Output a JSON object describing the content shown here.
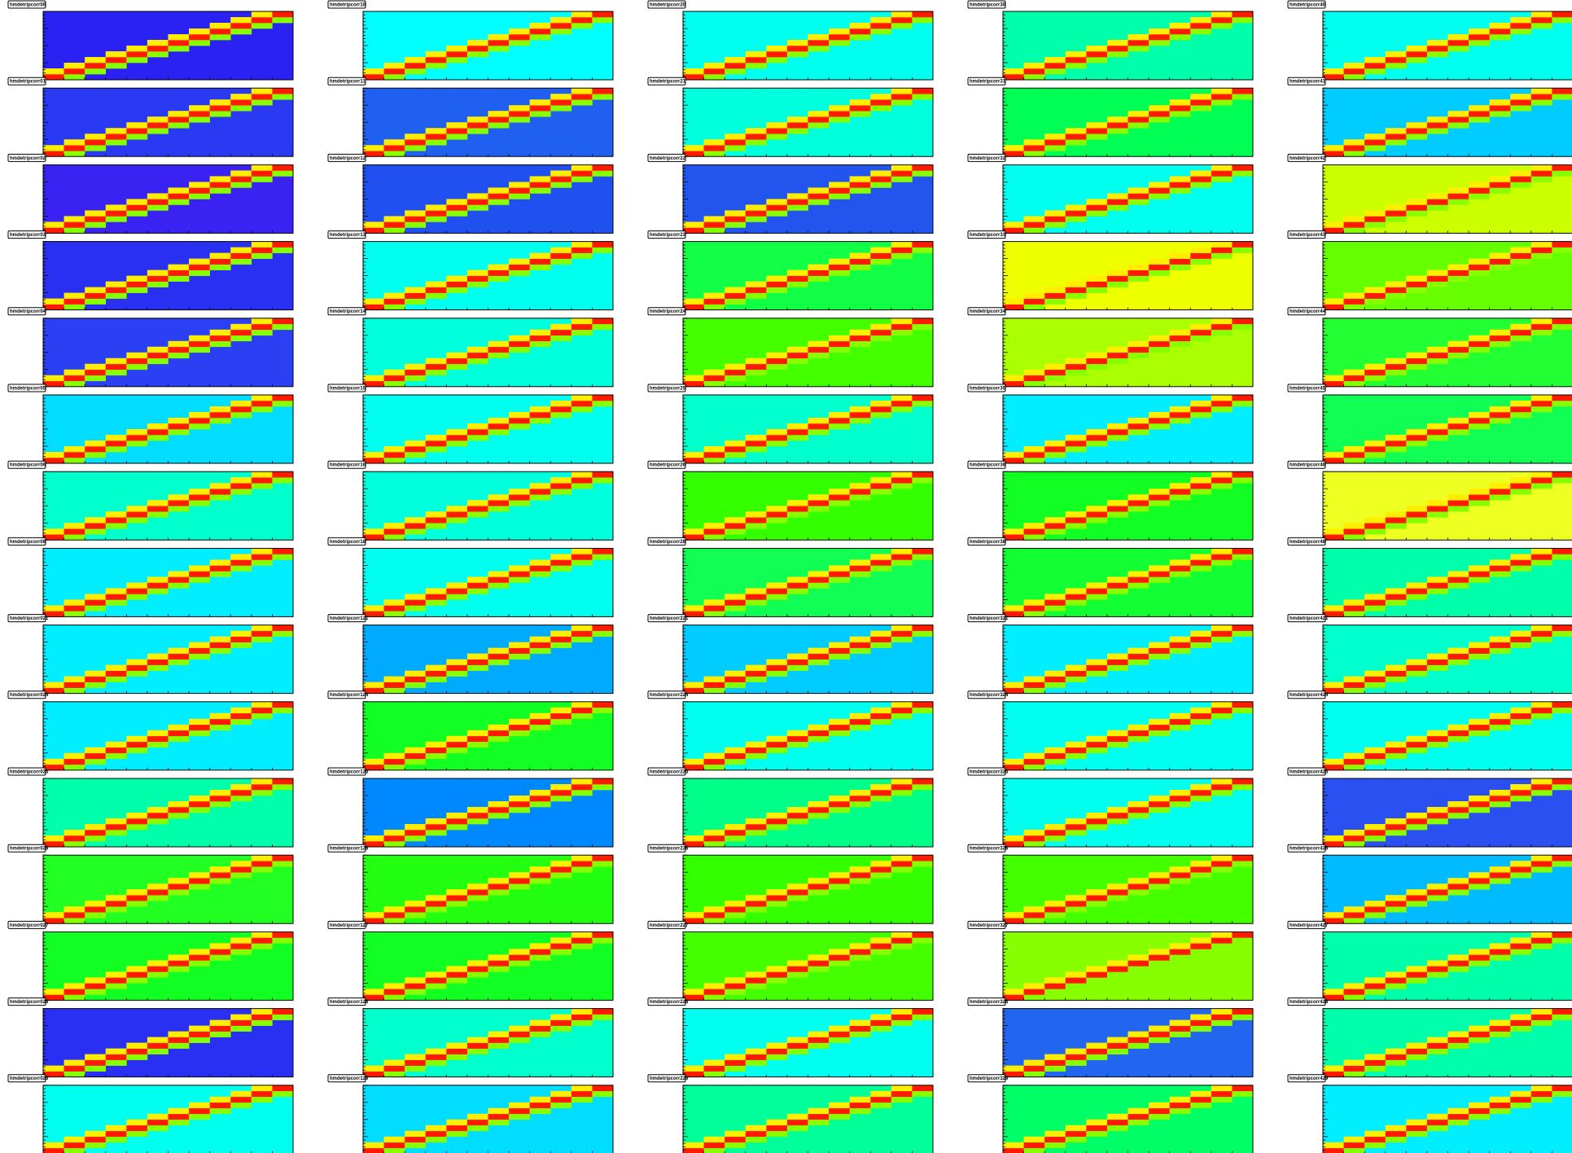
{
  "panels": [
    {
      "title": "hmdetripcorr00",
      "background": "#2a22f2"
    },
    {
      "title": "hmdetripcorr10",
      "background": "#00ffff"
    },
    {
      "title": "hmdetripcorr20",
      "background": "#00ffee"
    },
    {
      "title": "hmdetripcorr30",
      "background": "#00ffaa"
    },
    {
      "title": "hmdetripcorr40",
      "background": "#00ffee"
    },
    {
      "title": "hmdetripcorr01",
      "background": "#2a3af2"
    },
    {
      "title": "hmdetripcorr11",
      "background": "#2060f0"
    },
    {
      "title": "hmdetripcorr21",
      "background": "#00ffdd"
    },
    {
      "title": "hmdetripcorr31",
      "background": "#00ff55"
    },
    {
      "title": "hmdetripcorr41",
      "background": "#00ccff"
    },
    {
      "title": "hmdetripcorr02",
      "background": "#3a22f2"
    },
    {
      "title": "hmdetripcorr12",
      "background": "#2050f0"
    },
    {
      "title": "hmdetripcorr22",
      "background": "#2255ee"
    },
    {
      "title": "hmdetripcorr32",
      "background": "#00ffee"
    },
    {
      "title": "hmdetripcorr42",
      "background": "#ccff00"
    },
    {
      "title": "hmdetripcorr03",
      "background": "#2a30f2"
    },
    {
      "title": "hmdetripcorr13",
      "background": "#00ffee"
    },
    {
      "title": "hmdetripcorr23",
      "background": "#11ff44"
    },
    {
      "title": "hmdetripcorr33",
      "background": "#eeff00"
    },
    {
      "title": "hmdetripcorr43",
      "background": "#66ff00"
    },
    {
      "title": "hmdetripcorr04",
      "background": "#2a40f2"
    },
    {
      "title": "hmdetripcorr14",
      "background": "#00ffdd"
    },
    {
      "title": "hmdetripcorr24",
      "background": "#44ff00"
    },
    {
      "title": "hmdetripcorr34",
      "background": "#aaff00"
    },
    {
      "title": "hmdetripcorr44",
      "background": "#22ff33"
    },
    {
      "title": "hmdetripcorr05",
      "background": "#00ddff"
    },
    {
      "title": "hmdetripcorr15",
      "background": "#00ffee"
    },
    {
      "title": "hmdetripcorr25",
      "background": "#00ffcc"
    },
    {
      "title": "hmdetripcorr35",
      "background": "#00eeff"
    },
    {
      "title": "hmdetripcorr45",
      "background": "#11ff55"
    },
    {
      "title": "hmdetripcorr06",
      "background": "#00ffcc"
    },
    {
      "title": "hmdetripcorr16",
      "background": "#00ffdd"
    },
    {
      "title": "hmdetripcorr26",
      "background": "#33ff00"
    },
    {
      "title": "hmdetripcorr36",
      "background": "#11ff22"
    },
    {
      "title": "hmdetripcorr46",
      "background": "#eeff22"
    },
    {
      "title": "hmdetripcorr08",
      "background": "#00eeff"
    },
    {
      "title": "hmdetripcorr18",
      "background": "#00ffee"
    },
    {
      "title": "hmdetripcorr28",
      "background": "#11ff55"
    },
    {
      "title": "hmdetripcorr38",
      "background": "#11ff33"
    },
    {
      "title": "hmdetripcorr48",
      "background": "#00ffaa"
    },
    {
      "title": "hmdetripcorr021",
      "background": "#00eeff"
    },
    {
      "title": "hmdetripcorr121",
      "background": "#00aaff"
    },
    {
      "title": "hmdetripcorr221",
      "background": "#00ccff"
    },
    {
      "title": "hmdetripcorr321",
      "background": "#00eeff"
    },
    {
      "title": "hmdetripcorr421",
      "background": "#00ffcc"
    },
    {
      "title": "hmdetripcorr024",
      "background": "#00eeff"
    },
    {
      "title": "hmdetripcorr124",
      "background": "#11ff22"
    },
    {
      "title": "hmdetripcorr224",
      "background": "#00ffee"
    },
    {
      "title": "hmdetripcorr324",
      "background": "#00ffee"
    },
    {
      "title": "hmdetripcorr424",
      "background": "#00ffee"
    },
    {
      "title": "hmdetripcorr025",
      "background": "#00ffaa"
    },
    {
      "title": "hmdetripcorr125",
      "background": "#0088ff"
    },
    {
      "title": "hmdetripcorr225",
      "background": "#00ff88"
    },
    {
      "title": "hmdetripcorr325",
      "background": "#00ffee"
    },
    {
      "title": "hmdetripcorr425",
      "background": "#2a50f2"
    },
    {
      "title": "hmdetripcorr026",
      "background": "#22ff22"
    },
    {
      "title": "hmdetripcorr126",
      "background": "#22ff11"
    },
    {
      "title": "hmdetripcorr226",
      "background": "#33ff00"
    },
    {
      "title": "hmdetripcorr326",
      "background": "#44ff00"
    },
    {
      "title": "hmdetripcorr426",
      "background": "#00bbff"
    },
    {
      "title": "hmdetripcorr027",
      "background": "#11ff22"
    },
    {
      "title": "hmdetripcorr127",
      "background": "#11ff22"
    },
    {
      "title": "hmdetripcorr227",
      "background": "#44ff00"
    },
    {
      "title": "hmdetripcorr327",
      "background": "#88ff00"
    },
    {
      "title": "hmdetripcorr427",
      "background": "#00ffaa"
    },
    {
      "title": "hmdetripcorr028",
      "background": "#2a30f2"
    },
    {
      "title": "hmdetripcorr128",
      "background": "#00ffcc"
    },
    {
      "title": "hmdetripcorr228",
      "background": "#00ffee"
    },
    {
      "title": "hmdetripcorr328",
      "background": "#2266f0"
    },
    {
      "title": "hmdetripcorr428",
      "background": "#00ffaa"
    },
    {
      "title": "hmdetripcorr029",
      "background": "#00ffee"
    },
    {
      "title": "hmdetripcorr129",
      "background": "#00ddff"
    },
    {
      "title": "hmdetripcorr229",
      "background": "#00ff99"
    },
    {
      "title": "hmdetripcorr329",
      "background": "#00ff66"
    },
    {
      "title": "hmdetripcorr429",
      "background": "#00eeff"
    }
  ]
}
